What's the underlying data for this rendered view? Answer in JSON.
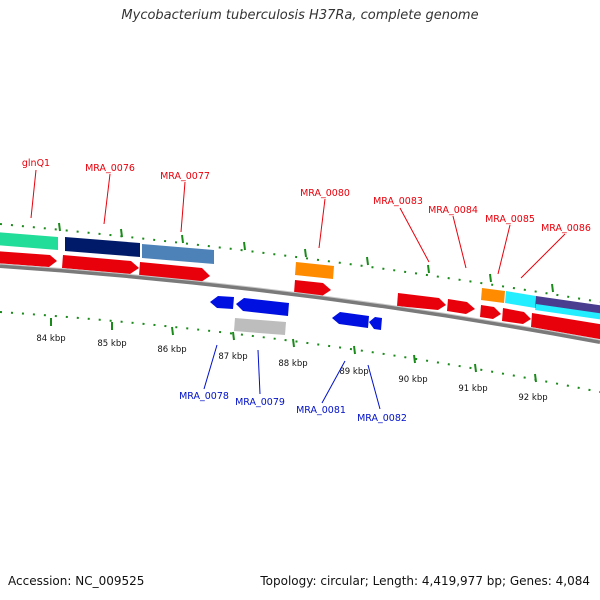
{
  "title": "Mycobacterium tuberculosis H37Ra, complete genome",
  "footer": {
    "accession": "Accession: NC_009525",
    "topology": "Topology: circular; Length: 4,419,977 bp; Genes: 4,084"
  },
  "colors": {
    "forward_label": "#e8000b",
    "reverse_label": "#0010c8",
    "tick": "#1a8a1a",
    "backbone": "#7a7a7a"
  },
  "ticks": [
    "84 kbp",
    "85 kbp",
    "86 kbp",
    "87 kbp",
    "88 kbp",
    "89 kbp",
    "90 kbp",
    "91 kbp",
    "92 kbp"
  ],
  "forward_labels": [
    "glnQ1",
    "MRA_0076",
    "MRA_0077",
    "MRA_0080",
    "MRA_0083",
    "MRA_0084",
    "MRA_0085",
    "MRA_0086"
  ],
  "reverse_labels": [
    "MRA_0078",
    "MRA_0079",
    "MRA_0081",
    "MRA_0082"
  ]
}
